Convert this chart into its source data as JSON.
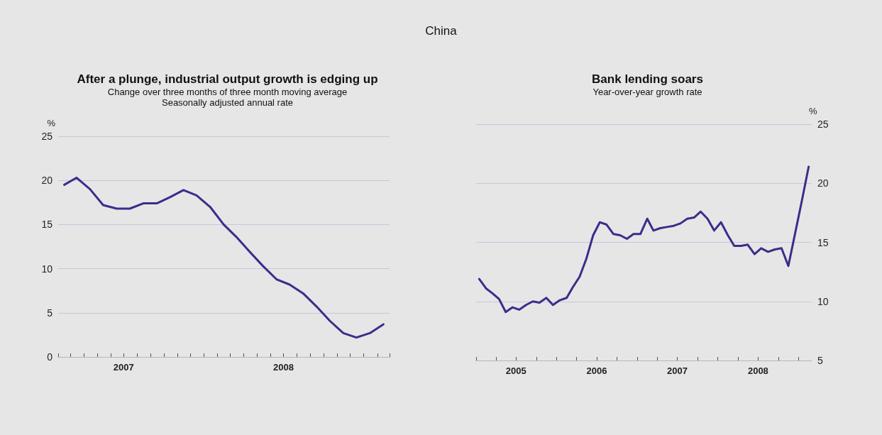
{
  "chart_data": [
    {
      "type": "other",
      "title": "China"
    },
    {
      "type": "line",
      "title": "After a plunge, industrial output growth is edging up",
      "subtitle": "Change over three months of three month moving average\nSeasonally adjusted annual rate",
      "ylabel": "%",
      "x": [
        "2007-02-15",
        "2007-03-15",
        "2007-04-15",
        "2007-05-15",
        "2007-06-15",
        "2007-07-15",
        "2007-08-15",
        "2007-09-15",
        "2007-10-15",
        "2007-11-15",
        "2007-12-15",
        "2008-01-15",
        "2008-02-15",
        "2008-03-15",
        "2008-04-15",
        "2008-05-15",
        "2008-06-15",
        "2008-07-15",
        "2008-08-15",
        "2008-09-15",
        "2008-10-15",
        "2008-11-15",
        "2008-12-15",
        "2009-01-15",
        "2009-02-15"
      ],
      "values": [
        19.5,
        20.3,
        19.0,
        17.2,
        16.8,
        16.8,
        17.4,
        17.4,
        18.1,
        18.9,
        18.3,
        17.0,
        15.0,
        13.6,
        11.9,
        10.3,
        8.8,
        8.2,
        7.2,
        5.7,
        4.1,
        2.7,
        2.2,
        2.7,
        3.7
      ],
      "color": "#3b2d8a",
      "line_style": "solid",
      "marker": "none",
      "grid": "y",
      "xlim": [
        "2007-02-01",
        "2009-03-01"
      ],
      "xticks": [
        {
          "value": "2007-02-01",
          "label": null
        },
        {
          "value": "2007-03-01",
          "label": null
        },
        {
          "value": "2007-04-01",
          "label": null
        },
        {
          "value": "2007-05-01",
          "label": null
        },
        {
          "value": "2007-06-01",
          "label": null
        },
        {
          "value": "2007-07-01",
          "label": "2007"
        },
        {
          "value": "2007-08-01",
          "label": null
        },
        {
          "value": "2007-09-01",
          "label": null
        },
        {
          "value": "2007-10-01",
          "label": null
        },
        {
          "value": "2007-11-01",
          "label": null
        },
        {
          "value": "2007-12-01",
          "label": null
        },
        {
          "value": "2008-01-01",
          "label": null
        },
        {
          "value": "2008-02-01",
          "label": null
        },
        {
          "value": "2008-03-01",
          "label": null
        },
        {
          "value": "2008-04-01",
          "label": null
        },
        {
          "value": "2008-05-01",
          "label": null
        },
        {
          "value": "2008-06-01",
          "label": null
        },
        {
          "value": "2008-07-01",
          "label": "2008"
        },
        {
          "value": "2008-08-01",
          "label": null
        },
        {
          "value": "2008-09-01",
          "label": null
        },
        {
          "value": "2008-10-01",
          "label": null
        },
        {
          "value": "2008-11-01",
          "label": null
        },
        {
          "value": "2008-12-01",
          "label": null
        },
        {
          "value": "2009-01-01",
          "label": null
        },
        {
          "value": "2009-02-01",
          "label": null
        },
        {
          "value": "2009-03-01",
          "label": null
        }
      ],
      "ylim": [
        0,
        25
      ],
      "yticks": [
        0,
        5,
        10,
        15,
        20,
        25
      ]
    },
    {
      "type": "line",
      "title": "Bank lending soars",
      "subtitle": "Year-over-year growth rate",
      "y2label": "%",
      "x": [
        "2005-01-15",
        "2005-02-15",
        "2005-03-15",
        "2005-04-15",
        "2005-05-15",
        "2005-06-15",
        "2005-07-15",
        "2005-08-15",
        "2005-09-15",
        "2005-10-15",
        "2005-11-15",
        "2005-12-15",
        "2006-01-15",
        "2006-02-15",
        "2006-03-15",
        "2006-04-15",
        "2006-05-15",
        "2006-06-15",
        "2006-07-15",
        "2006-08-15",
        "2006-09-15",
        "2006-10-15",
        "2006-11-15",
        "2006-12-15",
        "2007-01-15",
        "2007-02-15",
        "2007-03-15",
        "2007-04-15",
        "2007-05-15",
        "2007-06-15",
        "2007-07-15",
        "2007-08-15",
        "2007-09-15",
        "2007-10-15",
        "2007-11-15",
        "2007-12-15",
        "2008-01-15",
        "2008-02-15",
        "2008-03-15",
        "2008-04-15",
        "2008-05-15",
        "2008-06-15",
        "2008-07-15",
        "2008-08-15",
        "2008-09-15",
        "2008-10-15",
        "2008-11-15",
        "2008-12-15",
        "2009-01-15",
        "2009-02-15"
      ],
      "series": [
        {
          "color": "#3b2d8a",
          "axis": "y2",
          "values": [
            11.9,
            11.1,
            10.7,
            10.2,
            9.1,
            9.5,
            9.3,
            9.7,
            10.0,
            9.9,
            10.3,
            9.7,
            10.1,
            10.3,
            11.2,
            12.1,
            13.6,
            15.6,
            16.7,
            16.5,
            15.7,
            15.6,
            15.3,
            15.7,
            15.7,
            17.0,
            16.0,
            16.2,
            16.3,
            16.4,
            16.6,
            17.0,
            17.1,
            17.6,
            17.0,
            16.0,
            16.7,
            15.6,
            14.7,
            14.7,
            14.8,
            14.0,
            14.5,
            14.2,
            14.4,
            14.5,
            13.0,
            15.7,
            18.5,
            21.4
          ]
        }
      ],
      "line_style": "solid",
      "marker": "none",
      "grid": "y",
      "xlim": [
        "2005-01-01",
        "2009-03-01"
      ],
      "xticks": [
        {
          "value": "2005-01-01",
          "label": null
        },
        {
          "value": "2005-04-01",
          "label": null
        },
        {
          "value": "2005-07-01",
          "label": "2005"
        },
        {
          "value": "2005-10-01",
          "label": null
        },
        {
          "value": "2006-01-01",
          "label": null
        },
        {
          "value": "2006-04-01",
          "label": null
        },
        {
          "value": "2006-07-01",
          "label": "2006"
        },
        {
          "value": "2006-10-01",
          "label": null
        },
        {
          "value": "2007-01-01",
          "label": null
        },
        {
          "value": "2007-04-01",
          "label": null
        },
        {
          "value": "2007-07-01",
          "label": "2007"
        },
        {
          "value": "2007-10-01",
          "label": null
        },
        {
          "value": "2008-01-01",
          "label": null
        },
        {
          "value": "2008-04-01",
          "label": null
        },
        {
          "value": "2008-07-01",
          "label": "2008"
        },
        {
          "value": "2008-10-01",
          "label": null
        },
        {
          "value": "2009-01-01",
          "label": null
        }
      ],
      "y2lim": [
        5,
        25
      ],
      "y2ticks": [
        5,
        10,
        15,
        20,
        25
      ]
    }
  ]
}
